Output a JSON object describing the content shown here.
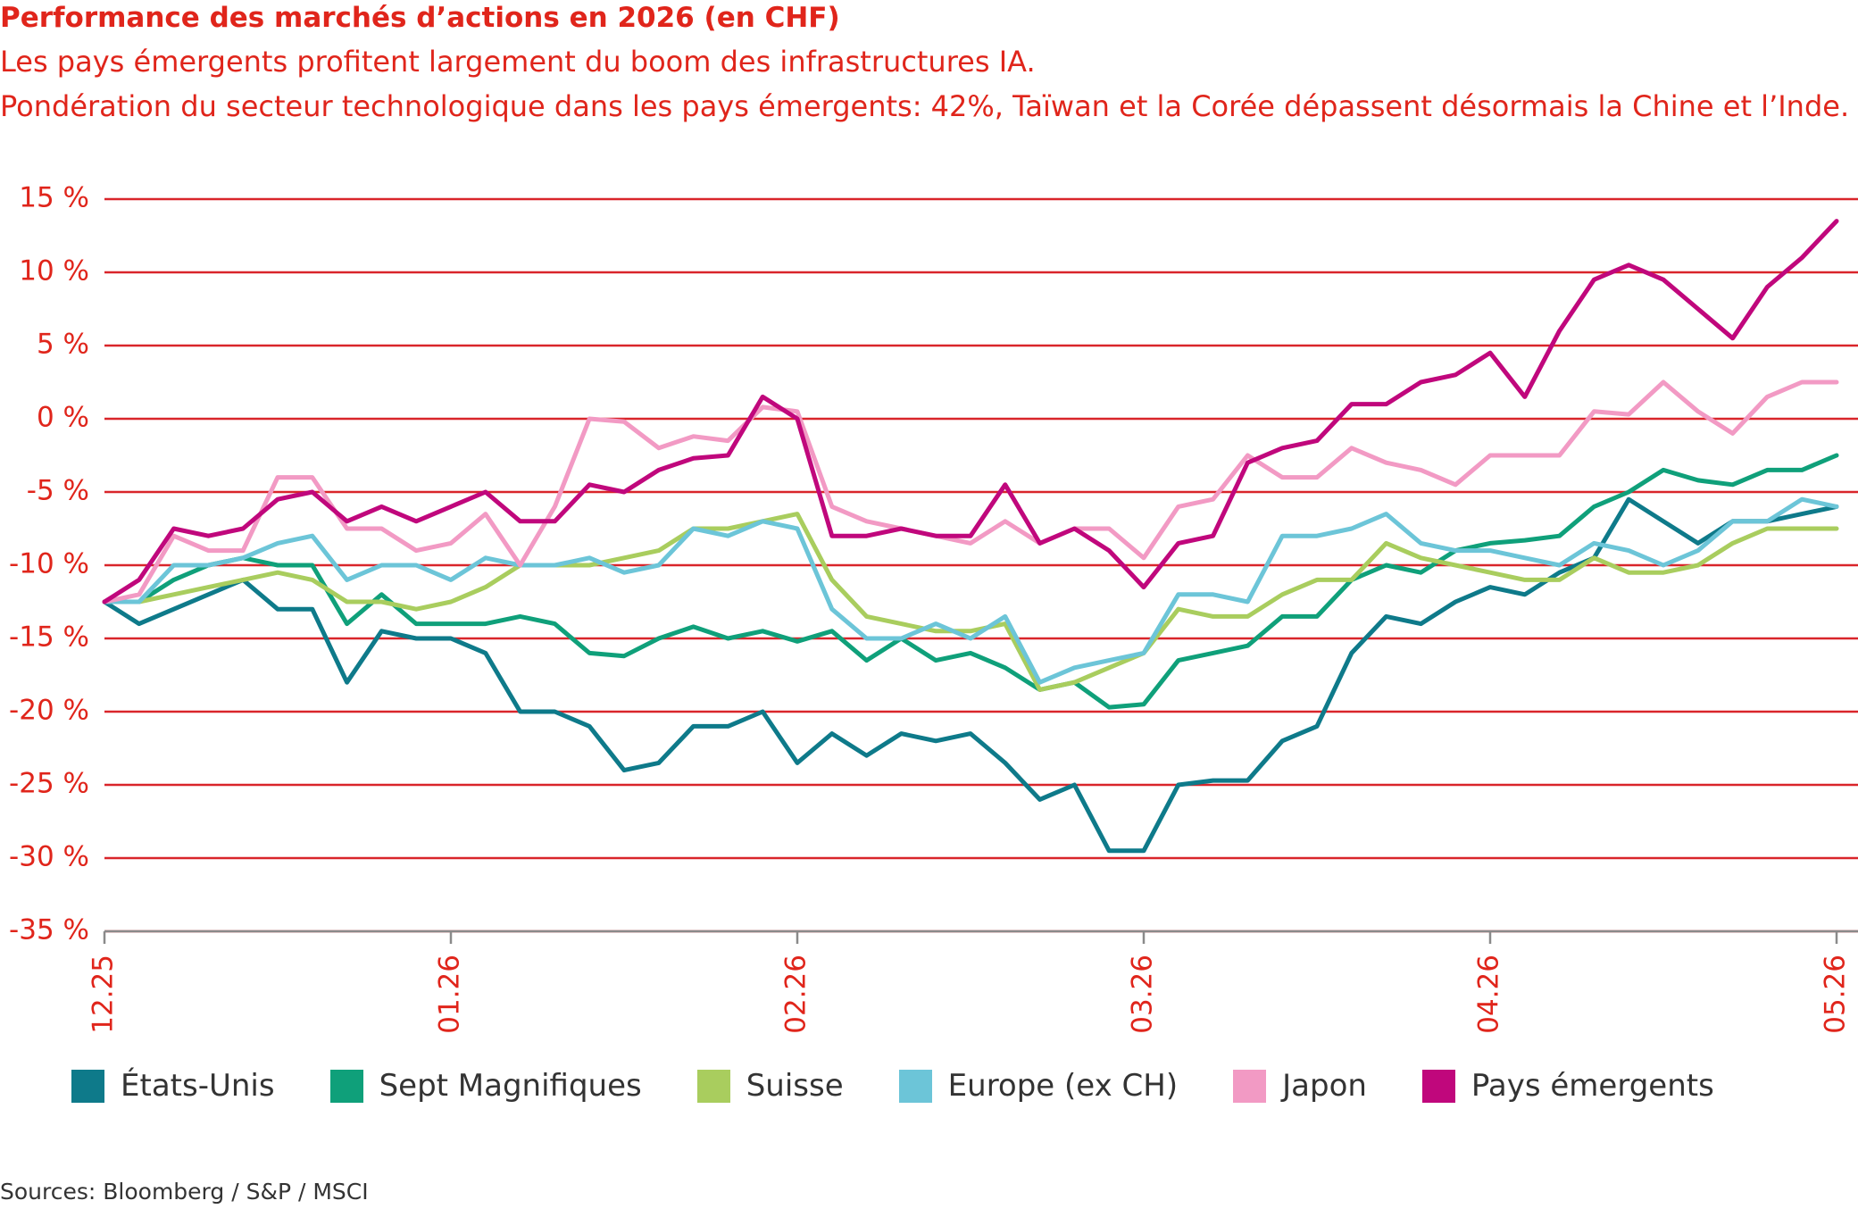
{
  "chart_data": {
    "type": "line",
    "title": "Performance des marchés d’actions en 2026 (en CHF)",
    "subtitle": [
      "Les pays émergents profitent largement du boom des infrastructures IA.",
      "Pondération du secteur technologique dans les pays émergents: 42%, Taïwan et la Corée dépassent désormais la Chine et l’Inde."
    ],
    "source": "Sources: Bloomberg / S&P / MSCI",
    "categories": [
      "12.25",
      null,
      null,
      null,
      null,
      null,
      null,
      null,
      null,
      null,
      "01.26",
      null,
      null,
      null,
      null,
      null,
      null,
      null,
      null,
      null,
      "02.26",
      null,
      null,
      null,
      null,
      null,
      null,
      null,
      null,
      null,
      "03.26",
      null,
      null,
      null,
      null,
      null,
      null,
      null,
      null,
      null,
      "04.26",
      null,
      null,
      null,
      null,
      null,
      null,
      null,
      null,
      null,
      "05.26"
    ],
    "ylim": [
      -35,
      15
    ],
    "yticks": [
      {
        "value": -35,
        "label": "-35 %"
      },
      {
        "value": -30,
        "label": "-30 %"
      },
      {
        "value": -25,
        "label": "-25 %"
      },
      {
        "value": -20,
        "label": "-20 %"
      },
      {
        "value": -15,
        "label": "-15 %"
      },
      {
        "value": -10,
        "label": "-10 %"
      },
      {
        "value": -5,
        "label": "-5 %"
      },
      {
        "value": 0,
        "label": "0 %"
      },
      {
        "value": 5,
        "label": "5 %"
      },
      {
        "value": 10,
        "label": "10 %"
      },
      {
        "value": 15,
        "label": "15 %"
      }
    ],
    "grid": true,
    "series": [
      {
        "name": "États-Unis",
        "color": "#0e7a8a",
        "values": [
          -12.5,
          -14,
          -13,
          -12,
          -11,
          -13,
          -13,
          -18,
          -14.5,
          -15,
          -15,
          -16,
          -20,
          -20,
          -21,
          -24,
          -23.5,
          -21,
          -21,
          -20,
          -23.5,
          -21.5,
          -23,
          -21.5,
          -22,
          -21.5,
          -23.5,
          -26,
          -25,
          -29.5,
          -29.5,
          -25,
          -24.7,
          -24.7,
          -22,
          -21,
          -16,
          -13.5,
          -14,
          -12.5,
          -11.5,
          -12,
          -10.5,
          -9.5,
          -5.5,
          -7,
          -8.5,
          -7,
          -7,
          -6.5,
          -6
        ]
      },
      {
        "name": "Sept Magnifiques",
        "color": "#0fa07a",
        "values": [
          -12.5,
          -12.5,
          -11,
          -10,
          -9.5,
          -10,
          -10,
          -14,
          -12,
          -14,
          -14,
          -14,
          -13.5,
          -14,
          -16,
          -16.2,
          -15,
          -14.2,
          -15,
          -14.5,
          -15.2,
          -14.5,
          -16.5,
          -15,
          -16.5,
          -16,
          -17,
          -18.5,
          -18,
          -19.7,
          -19.5,
          -16.5,
          -16,
          -15.5,
          -13.5,
          -13.5,
          -11,
          -10,
          -10.5,
          -9,
          -8.5,
          -8.3,
          -8,
          -6,
          -5,
          -3.5,
          -4.2,
          -4.5,
          -3.5,
          -3.5,
          -2.5
        ]
      },
      {
        "name": "Suisse",
        "color": "#a9cd5e",
        "values": [
          -12.5,
          -12.5,
          -12,
          -11.5,
          -11,
          -10.5,
          -11,
          -12.5,
          -12.5,
          -13,
          -12.5,
          -11.5,
          -10,
          -10,
          -10,
          -9.5,
          -9,
          -7.5,
          -7.5,
          -7,
          -6.5,
          -11,
          -13.5,
          -14,
          -14.5,
          -14.5,
          -14,
          -18.5,
          -18,
          -17,
          -16,
          -13,
          -13.5,
          -13.5,
          -12,
          -11,
          -11,
          -8.5,
          -9.5,
          -10,
          -10.5,
          -11,
          -11,
          -9.5,
          -10.5,
          -10.5,
          -10,
          -8.5,
          -7.5,
          -7.5,
          -7.5
        ]
      },
      {
        "name": "Europe (ex CH)",
        "color": "#6cc5d8",
        "values": [
          -12.5,
          -12.5,
          -10,
          -10,
          -9.5,
          -8.5,
          -8,
          -11,
          -10,
          -10,
          -11,
          -9.5,
          -10,
          -10,
          -9.5,
          -10.5,
          -10,
          -7.5,
          -8,
          -7,
          -7.5,
          -13,
          -15,
          -15,
          -14,
          -15,
          -13.5,
          -18,
          -17,
          -16.5,
          -16,
          -12,
          -12,
          -12.5,
          -8,
          -8,
          -7.5,
          -6.5,
          -8.5,
          -9,
          -9,
          -9.5,
          -10,
          -8.5,
          -9,
          -10,
          -9,
          -7,
          -7,
          -5.5,
          -6
        ]
      },
      {
        "name": "Japon",
        "color": "#f29ac4",
        "values": [
          -12.5,
          -12,
          -8,
          -9,
          -9,
          -4,
          -4,
          -7.5,
          -7.5,
          -9,
          -8.5,
          -6.5,
          -10,
          -6,
          0,
          -0.2,
          -2,
          -1.2,
          -1.5,
          0.8,
          0.5,
          -6,
          -7,
          -7.5,
          -8,
          -8.5,
          -7,
          -8.5,
          -7.5,
          -7.5,
          -9.5,
          -6,
          -5.5,
          -2.5,
          -4,
          -4,
          -2,
          -3,
          -3.5,
          -4.5,
          -2.5,
          -2.5,
          -2.5,
          0.5,
          0.3,
          2.5,
          0.5,
          -1,
          1.5,
          2.5,
          2.5
        ]
      },
      {
        "name": "Pays émergents",
        "color": "#c0077c",
        "values": [
          -12.5,
          -11,
          -7.5,
          -8,
          -7.5,
          -5.5,
          -5,
          -7,
          -6,
          -7,
          -6,
          -5,
          -7,
          -7,
          -4.5,
          -5,
          -3.5,
          -2.7,
          -2.5,
          1.5,
          0,
          -8,
          -8,
          -7.5,
          -8,
          -8,
          -4.5,
          -8.5,
          -7.5,
          -9,
          -11.5,
          -8.5,
          -8,
          -3,
          -2,
          -1.5,
          1,
          1,
          2.5,
          3,
          4.5,
          1.5,
          6,
          9.5,
          10.5,
          9.5,
          7.5,
          5.5,
          9,
          11,
          13.5
        ]
      }
    ]
  }
}
